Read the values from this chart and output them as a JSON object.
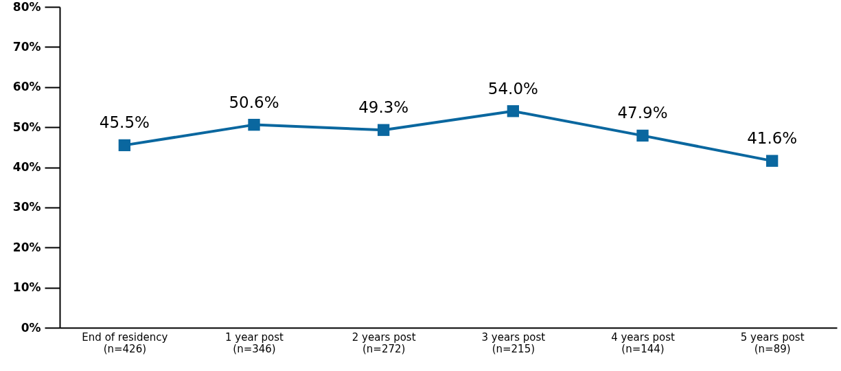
{
  "chart_data": {
    "type": "line",
    "categories": [
      "End of residency\n(n=426)",
      "1 year post\n(n=346)",
      "2 years post\n(n=272)",
      "3 years post\n(n=215)",
      "4 years post\n(n=144)",
      "5 years post\n(n=89)"
    ],
    "series": [
      {
        "color": "#0a679f",
        "values": [
          45.5,
          50.6,
          49.3,
          54.0,
          47.9,
          41.6
        ],
        "value_labels": [
          "45.5%",
          "50.6%",
          "49.3%",
          "54.0%",
          "47.9%",
          "41.6%"
        ]
      }
    ],
    "ylim": [
      0,
      80
    ],
    "yticks": [
      {
        "value": 0,
        "label": "0%"
      },
      {
        "value": 10,
        "label": "10%"
      },
      {
        "value": 20,
        "label": "20%"
      },
      {
        "value": 30,
        "label": "30%"
      },
      {
        "value": 40,
        "label": "40%"
      },
      {
        "value": 50,
        "label": "50%"
      },
      {
        "value": 60,
        "label": "60%"
      },
      {
        "value": 70,
        "label": "70%"
      },
      {
        "value": 80,
        "label": "80%"
      }
    ],
    "marker": "square",
    "line_style": "solid",
    "grid": false
  }
}
